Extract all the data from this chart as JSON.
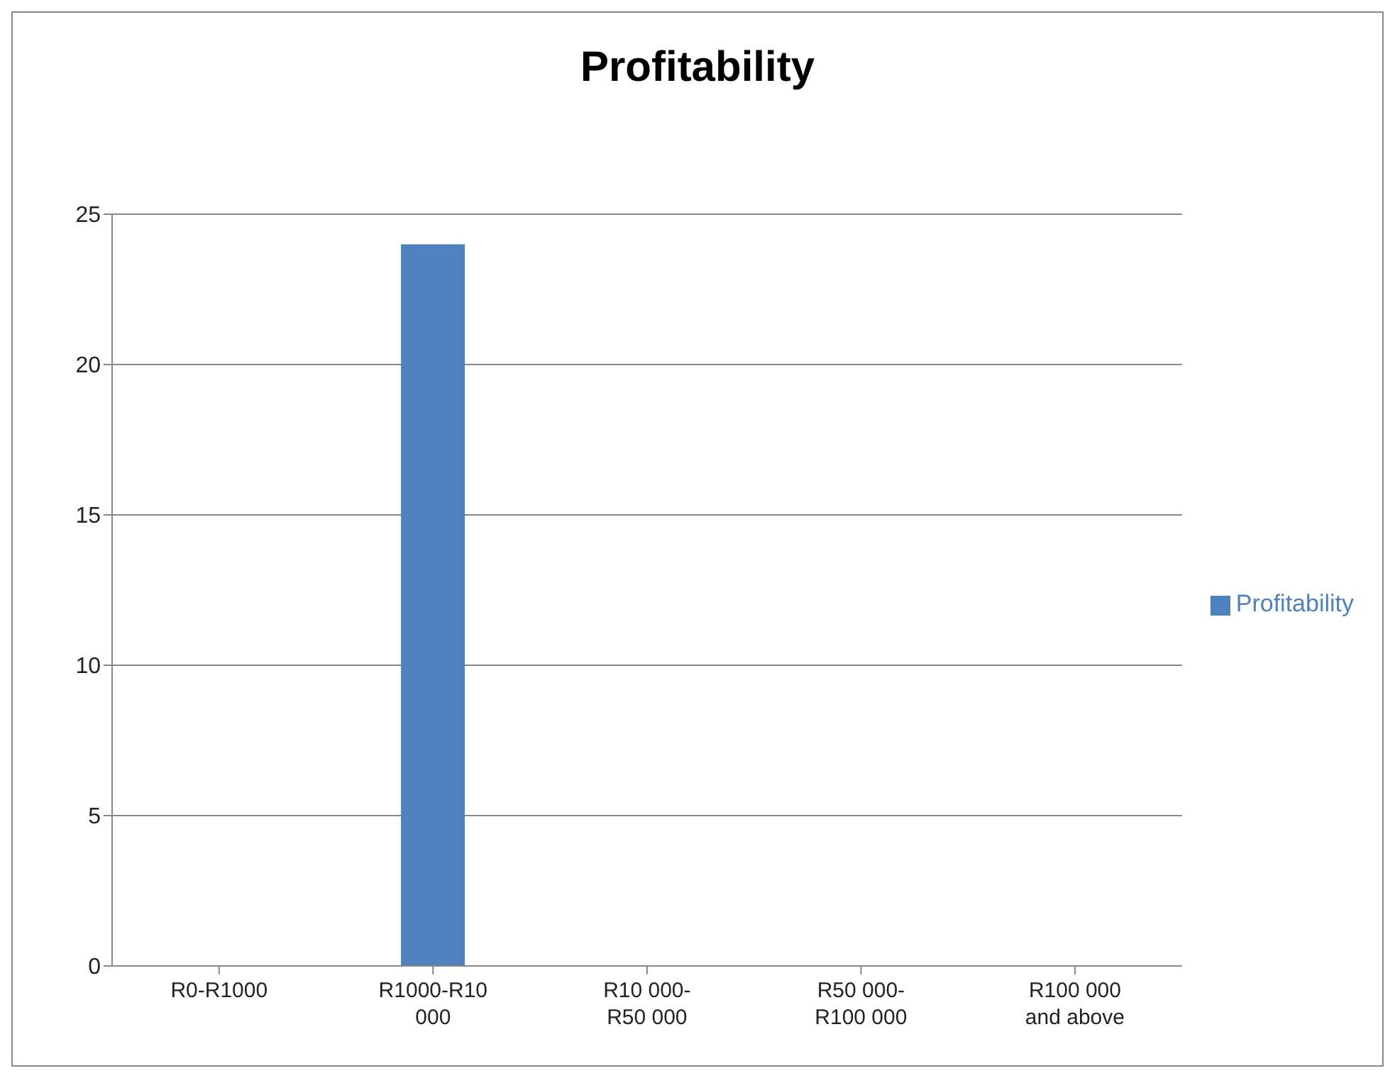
{
  "chart_data": {
    "type": "bar",
    "title": "Profitability",
    "categories": [
      "R0-R1000",
      "R1000-R10 000",
      "R10 000-R50 000",
      "R50 000-R100 000",
      "R100 000 and above"
    ],
    "series": [
      {
        "name": "Profitability",
        "color": "#4f81bd",
        "values": [
          0,
          24,
          0,
          0,
          0
        ]
      }
    ],
    "ylim": [
      0,
      25
    ],
    "yticks": [
      0,
      5,
      10,
      15,
      20,
      25
    ],
    "grid": "y",
    "legend": "right"
  }
}
